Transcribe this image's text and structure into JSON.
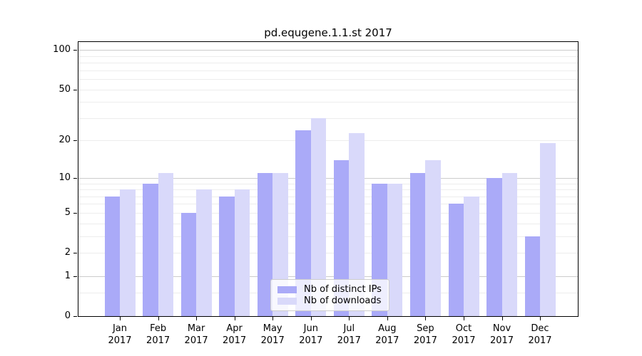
{
  "title": "pd.equgene.1.1.st 2017",
  "chart_data": {
    "type": "bar",
    "title": "pd.equgene.1.1.st 2017",
    "categories": [
      "Jan 2017",
      "Feb 2017",
      "Mar 2017",
      "Apr 2017",
      "May 2017",
      "Jun 2017",
      "Jul 2017",
      "Aug 2017",
      "Sep 2017",
      "Oct 2017",
      "Nov 2017",
      "Dec 2017"
    ],
    "series": [
      {
        "name": "Nb of distinct IPs",
        "color": "#aaaaf8",
        "values": [
          7,
          9,
          5,
          7,
          11,
          24,
          14,
          9,
          11,
          6,
          10,
          3
        ]
      },
      {
        "name": "Nb of downloads",
        "color": "#d9d9fa",
        "values": [
          8,
          11,
          8,
          8,
          11,
          30,
          23,
          9,
          14,
          7,
          11,
          19
        ]
      }
    ],
    "xlabel": "",
    "ylabel": "",
    "y_scale": "log10(value+1)",
    "ylim": [
      0,
      115
    ],
    "y_ticks": [
      100,
      50,
      20,
      10,
      5,
      2,
      1,
      0
    ],
    "y_major_gridlines": [
      100,
      10,
      1
    ],
    "y_minor_gridlines": [
      0.5,
      2,
      3,
      4,
      5,
      6,
      7,
      8,
      9,
      20,
      30,
      40,
      50,
      60,
      70,
      80,
      90
    ],
    "grid": true,
    "legend_position": "lower center"
  },
  "colors": {
    "bar_distinct_ips": "#aaaaf8",
    "bar_downloads": "#d9d9fa",
    "grid_major": "#cccccc",
    "grid_minor": "#ededed",
    "spine": "#000000",
    "text": "#000000",
    "legend_border": "#cccccc"
  }
}
